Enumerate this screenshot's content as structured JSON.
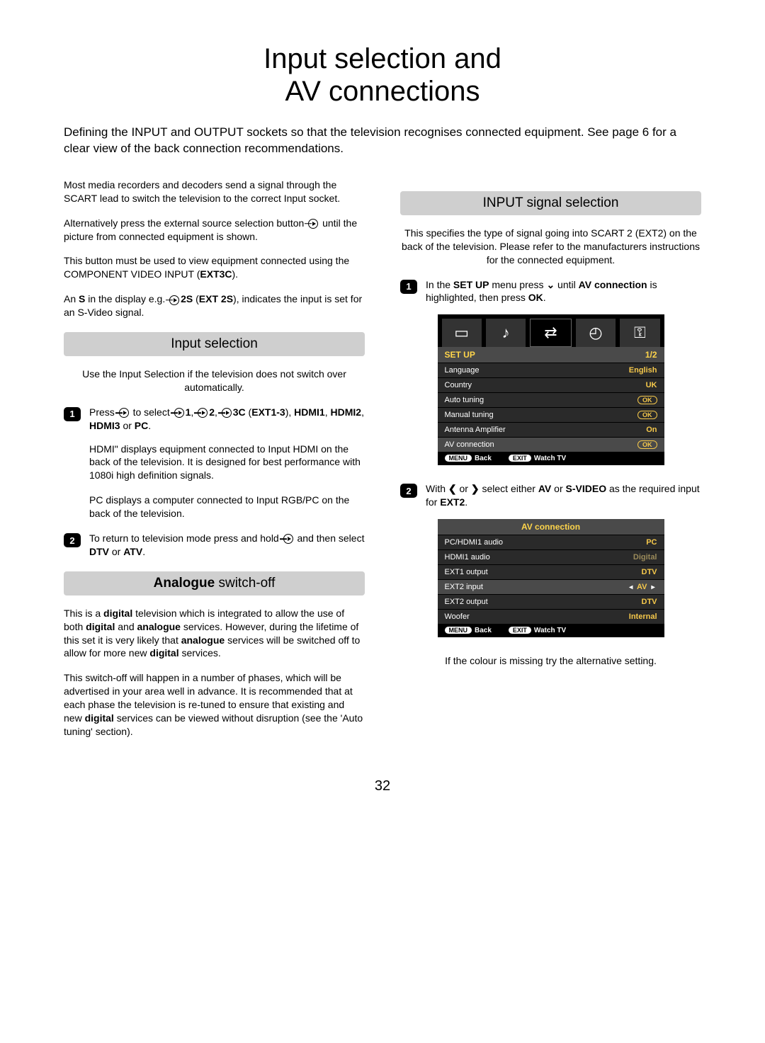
{
  "title_line1": "Input selection and",
  "title_line2": "AV connections",
  "intro": "Defining the INPUT and OUTPUT sockets so that the television recognises connected equipment. See page 6 for a clear view of the back connection recommendations.",
  "left": {
    "p1": "Most media recorders and decoders send a signal through the SCART lead to switch the television to the correct Input socket.",
    "p2a": "Alternatively press the external source selection button ",
    "p2b": " until the picture from connected equipment is shown.",
    "p3a": "This button must be used to view equipment connected using the COMPONENT VIDEO INPUT (",
    "p3b": "EXT3C",
    "p3c": ").",
    "p4a": "An ",
    "p4b": "S",
    "p4c": " in the display e.g. ",
    "p4d": "2S",
    "p4e": " (",
    "p4f": "EXT 2S",
    "p4g": "), indicates the input is set for an S-Video signal.",
    "input_selection_header": "Input selection",
    "is_intro": "Use the Input Selection if the television does not switch over automatically.",
    "step1a": "Press ",
    "step1b": " to select ",
    "step1c": "1",
    "step1d": ", ",
    "step1e": "2",
    "step1f": ", ",
    "step1g": "3C",
    "step1h": " (",
    "step1i": "EXT1-3",
    "step1j": "), ",
    "step1k": "HDMI1",
    "step1l": ", ",
    "step1m": "HDMI2",
    "step1n": ", ",
    "step1o": "HDMI3",
    "step1p": " or ",
    "step1q": "PC",
    "step1r": ".",
    "is_p2": "HDMI\" displays equipment connected to Input HDMI on the back of the television. It is designed for best performance with 1080i high definition signals.",
    "is_p3": "PC displays a computer connected to Input RGB/PC on the back of the television.",
    "step2a": "To return to television mode press and hold ",
    "step2b": " and then select ",
    "step2c": "DTV",
    "step2d": " or ",
    "step2e": "ATV",
    "step2f": ".",
    "analogue_header_bold": "Analogue",
    "analogue_header_rest": " switch-off",
    "an_p1a": "This is a ",
    "an_p1b": "digital",
    "an_p1c": " television which is integrated to allow the use of both ",
    "an_p1d": "digital",
    "an_p1e": " and ",
    "an_p1f": "analogue",
    "an_p1g": " services. However, during the lifetime of this set it is very likely that ",
    "an_p1h": "analogue",
    "an_p1i": " services will be switched off to allow for more new ",
    "an_p1j": "digital",
    "an_p1k": " services.",
    "an_p2a": "This switch-off will happen in a number of phases, which will be advertised in your area well in advance. It is recommended that at each phase the television is re-tuned to ensure that existing and new ",
    "an_p2b": "digital",
    "an_p2c": " services can be viewed without disruption (see the 'Auto tuning' section)."
  },
  "right": {
    "header": "INPUT signal selection",
    "intro": "This specifies the type of signal going into SCART 2 (EXT2) on the back of the television. Please refer to the manufacturers instructions for the connected equipment.",
    "step1a": "In the ",
    "step1b": "SET UP",
    "step1c": " menu press ",
    "step1d": " until ",
    "step1e": "AV connection",
    "step1f": " is highlighted, then press ",
    "step1g": "OK",
    "step1h": ".",
    "step2a": "With ",
    "step2b": " or ",
    "step2c": " select either ",
    "step2d": "AV",
    "step2e": " or ",
    "step2f": "S-VIDEO",
    "step2g": " as the required input for ",
    "step2h": "EXT2",
    "step2i": ".",
    "footnote": "If the colour is missing try the alternative setting."
  },
  "osd1": {
    "header_title": "SET UP",
    "header_page": "1/2",
    "rows": [
      {
        "label": "Language",
        "value": "English",
        "type": "text"
      },
      {
        "label": "Country",
        "value": "UK",
        "type": "text"
      },
      {
        "label": "Auto tuning",
        "value": "OK",
        "type": "ok"
      },
      {
        "label": "Manual tuning",
        "value": "OK",
        "type": "ok"
      },
      {
        "label": "Antenna Amplifier",
        "value": "On",
        "type": "text"
      },
      {
        "label": "AV connection",
        "value": "OK",
        "type": "ok",
        "highlight": true
      }
    ],
    "footer_menu": "MENU",
    "footer_back": "Back",
    "footer_exit": "EXIT",
    "footer_watch": "Watch TV"
  },
  "osd2": {
    "header_title": "AV connection",
    "rows": [
      {
        "label": "PC/HDMI1 audio",
        "value": "PC",
        "type": "text"
      },
      {
        "label": "HDMI1 audio",
        "value": "Digital",
        "type": "dim"
      },
      {
        "label": "EXT1 output",
        "value": "DTV",
        "type": "text"
      },
      {
        "label": "EXT2 input",
        "value": "AV",
        "type": "arrows",
        "highlight": true
      },
      {
        "label": "EXT2 output",
        "value": "DTV",
        "type": "text"
      },
      {
        "label": "Woofer",
        "value": "Internal",
        "type": "text"
      }
    ],
    "footer_menu": "MENU",
    "footer_back": "Back",
    "footer_exit": "EXIT",
    "footer_watch": "Watch TV"
  },
  "page_number": "32",
  "colors": {
    "section_bar_bg": "#cfcfcf",
    "osd_value": "#f5c84b",
    "osd_header_text": "#ffd54a"
  }
}
